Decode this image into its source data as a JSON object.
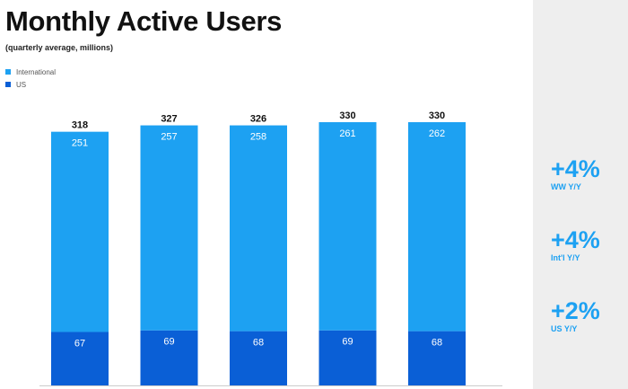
{
  "colors": {
    "international": "#1da1f2",
    "us": "#0a5fd6",
    "accent": "#1da1f2"
  },
  "legend": {
    "international": "International",
    "us": "US"
  },
  "chart_data": {
    "type": "bar",
    "stacked": true,
    "title": "Monthly Active Users",
    "subtitle": "(quarterly average, millions)",
    "categories": [
      "",
      "",
      "",
      "",
      ""
    ],
    "series": [
      {
        "name": "US",
        "values": [
          67,
          69,
          68,
          69,
          68
        ]
      },
      {
        "name": "International",
        "values": [
          251,
          257,
          258,
          261,
          262
        ]
      }
    ],
    "totals": [
      318,
      327,
      326,
      330,
      330
    ],
    "ylim": [
      0,
      330
    ],
    "legend_position": "top-left",
    "grid": false
  },
  "stats": [
    {
      "value": "+4%",
      "label": "WW Y/Y"
    },
    {
      "value": "+4%",
      "label": "Int'l Y/Y"
    },
    {
      "value": "+2%",
      "label": "US Y/Y"
    }
  ]
}
